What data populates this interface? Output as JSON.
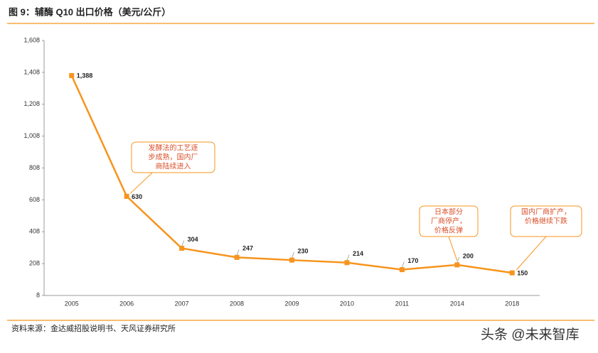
{
  "chart_data": {
    "type": "line",
    "title": "图 9：辅酶 Q10 出口价格（美元/公斤）",
    "source": "资料来源：金达威招股说明书、天风证券研究所",
    "watermark": "头条 @未来智库",
    "categories": [
      "2005",
      "2006",
      "2007",
      "2008",
      "2009",
      "2010",
      "2011",
      "2014",
      "2018"
    ],
    "series": [
      {
        "name": "辅酶 Q10 出口价格",
        "color": "#f7941d",
        "values": [
          1388,
          630,
          304,
          247,
          230,
          214,
          170,
          200,
          150
        ],
        "value_labels": [
          "1,388",
          "630",
          "304",
          "247",
          "230",
          "214",
          "170",
          "200",
          "150"
        ]
      }
    ],
    "ylim": [
      8,
      1608
    ],
    "yticks": [
      8,
      208,
      408,
      608,
      808,
      {
        "value": 1008,
        "label": "1,008"
      },
      {
        "value": 1208,
        "label": "1,208"
      },
      {
        "value": 1408,
        "label": "1,408"
      },
      {
        "value": 1608,
        "label": "1,608"
      }
    ],
    "annotations": [
      {
        "lines": [
          "发酵法的工艺逐",
          "步成熟，国内厂",
          "商陆续进入"
        ]
      },
      {
        "lines": [
          "日本部分",
          "厂商停产，",
          "价格反弹"
        ]
      },
      {
        "lines": [
          "国内厂商扩产，",
          "价格继续下跌"
        ]
      }
    ]
  }
}
